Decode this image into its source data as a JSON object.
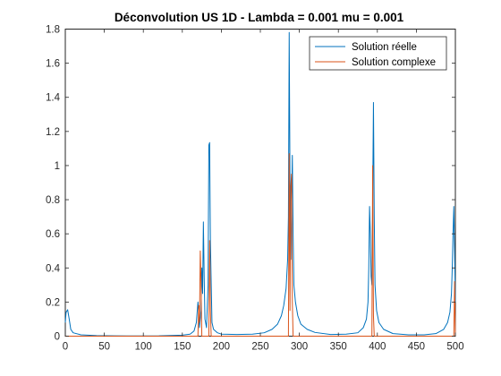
{
  "chart_data": {
    "type": "line",
    "title": "Déconvolution US 1D - Lambda = 0.001 mu = 0.001",
    "xlabel": "",
    "ylabel": "",
    "xlim": [
      0,
      500
    ],
    "ylim": [
      0,
      1.8
    ],
    "xticks": [
      0,
      50,
      100,
      150,
      200,
      250,
      300,
      350,
      400,
      450,
      500
    ],
    "yticks": [
      0,
      0.2,
      0.4,
      0.6,
      0.8,
      1,
      1.2,
      1.4,
      1.6,
      1.8
    ],
    "xtick_labels": [
      "0",
      "50",
      "100",
      "150",
      "200",
      "250",
      "300",
      "350",
      "400",
      "450",
      "500"
    ],
    "ytick_labels": [
      "0",
      "0.2",
      "0.4",
      "0.6",
      "0.8",
      "1",
      "1.2",
      "1.4",
      "1.6",
      "1.8"
    ],
    "grid": false,
    "legend_position": "top-right",
    "series": [
      {
        "name": "Solution réelle",
        "color": "#0072bd",
        "points": [
          [
            0,
            0.08
          ],
          [
            1,
            0.14
          ],
          [
            3,
            0.155
          ],
          [
            5,
            0.1
          ],
          [
            7,
            0.04
          ],
          [
            10,
            0.02
          ],
          [
            20,
            0.008
          ],
          [
            40,
            0.003
          ],
          [
            80,
            0.001
          ],
          [
            120,
            0.002
          ],
          [
            150,
            0.006
          ],
          [
            160,
            0.012
          ],
          [
            165,
            0.03
          ],
          [
            168,
            0.08
          ],
          [
            170,
            0.2
          ],
          [
            171,
            0.14
          ],
          [
            172,
            0.05
          ],
          [
            174,
            0.15
          ],
          [
            175,
            0.4
          ],
          [
            176,
            0.25
          ],
          [
            177,
            0.67
          ],
          [
            178,
            0.35
          ],
          [
            179,
            0.1
          ],
          [
            181,
            0.05
          ],
          [
            183,
            0.3
          ],
          [
            184,
            1.12
          ],
          [
            185,
            1.135
          ],
          [
            186,
            0.55
          ],
          [
            188,
            0.08
          ],
          [
            190,
            0.04
          ],
          [
            195,
            0.02
          ],
          [
            200,
            0.012
          ],
          [
            220,
            0.01
          ],
          [
            240,
            0.012
          ],
          [
            255,
            0.02
          ],
          [
            265,
            0.04
          ],
          [
            272,
            0.07
          ],
          [
            277,
            0.12
          ],
          [
            280,
            0.18
          ],
          [
            283,
            0.28
          ],
          [
            285,
            0.45
          ],
          [
            286,
            0.7
          ],
          [
            287,
            1.78
          ],
          [
            288,
            0.9
          ],
          [
            289,
            0.45
          ],
          [
            290,
            0.75
          ],
          [
            291,
            1.06
          ],
          [
            292,
            0.6
          ],
          [
            293,
            0.3
          ],
          [
            295,
            0.2
          ],
          [
            298,
            0.12
          ],
          [
            302,
            0.07
          ],
          [
            310,
            0.04
          ],
          [
            320,
            0.022
          ],
          [
            340,
            0.01
          ],
          [
            360,
            0.012
          ],
          [
            375,
            0.02
          ],
          [
            382,
            0.05
          ],
          [
            386,
            0.1
          ],
          [
            388,
            0.2
          ],
          [
            389,
            0.4
          ],
          [
            390,
            0.76
          ],
          [
            391,
            0.6
          ],
          [
            392,
            0.35
          ],
          [
            393,
            0.3
          ],
          [
            394,
            0.8
          ],
          [
            395,
            1.37
          ],
          [
            396,
            0.7
          ],
          [
            397,
            0.3
          ],
          [
            399,
            0.15
          ],
          [
            402,
            0.08
          ],
          [
            408,
            0.04
          ],
          [
            420,
            0.015
          ],
          [
            440,
            0.008
          ],
          [
            460,
            0.008
          ],
          [
            475,
            0.015
          ],
          [
            485,
            0.04
          ],
          [
            490,
            0.08
          ],
          [
            493,
            0.14
          ],
          [
            495,
            0.25
          ],
          [
            496,
            0.4
          ],
          [
            497,
            0.6
          ],
          [
            498,
            0.76
          ],
          [
            499,
            0.5
          ],
          [
            500,
            0.2
          ]
        ]
      },
      {
        "name": "Solution complexe",
        "color": "#d95319",
        "points": [
          [
            0,
            0
          ],
          [
            170,
            0
          ],
          [
            171,
            0.18
          ],
          [
            172,
            0.08
          ],
          [
            173,
            0.5
          ],
          [
            174,
            0.32
          ],
          [
            175,
            0
          ],
          [
            184,
            0
          ],
          [
            185,
            0.56
          ],
          [
            186,
            0.15
          ],
          [
            187,
            0
          ],
          [
            286,
            0
          ],
          [
            287,
            1.07
          ],
          [
            288,
            0.15
          ],
          [
            289,
            0.88
          ],
          [
            290,
            0.95
          ],
          [
            291,
            0.2
          ],
          [
            292,
            0
          ],
          [
            393,
            0
          ],
          [
            394,
            1.0
          ],
          [
            395,
            0.12
          ],
          [
            396,
            0
          ],
          [
            498,
            0
          ],
          [
            499,
            0.32
          ],
          [
            500,
            0
          ]
        ]
      }
    ]
  }
}
